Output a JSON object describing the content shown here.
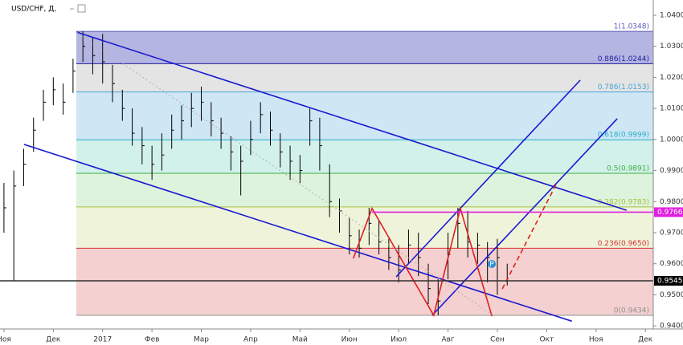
{
  "chart_data": {
    "type": "ohlc",
    "title": "USD/CHF, Д,",
    "xlim": [
      -0.08,
      13.16
    ],
    "ylim": [
      0.939,
      1.0449
    ],
    "xticks": [
      {
        "value": 0,
        "label": "Ноя"
      },
      {
        "value": 1,
        "label": "Дек"
      },
      {
        "value": 2,
        "label": "2017"
      },
      {
        "value": 3,
        "label": "Фев"
      },
      {
        "value": 4,
        "label": "Мар"
      },
      {
        "value": 5,
        "label": "Апр"
      },
      {
        "value": 6,
        "label": "Май"
      },
      {
        "value": 7,
        "label": "Июн"
      },
      {
        "value": 8,
        "label": "Июл"
      },
      {
        "value": 9,
        "label": "Авг"
      },
      {
        "value": 10,
        "label": "Сен"
      },
      {
        "value": 11,
        "label": "Окт"
      },
      {
        "value": 12,
        "label": "Ноя"
      },
      {
        "value": 13,
        "label": "Дек"
      }
    ],
    "yticks": [
      {
        "value": 0.94,
        "label": "0.9400"
      },
      {
        "value": 0.95,
        "label": "0.9500"
      },
      {
        "value": 0.96,
        "label": "0.9600"
      },
      {
        "value": 0.97,
        "label": "0.9700"
      },
      {
        "value": 0.98,
        "label": "0.9800"
      },
      {
        "value": 0.99,
        "label": "0.9900"
      },
      {
        "value": 1.0,
        "label": "1.0000"
      },
      {
        "value": 1.01,
        "label": "1.0100"
      },
      {
        "value": 1.02,
        "label": "1.0200"
      },
      {
        "value": 1.03,
        "label": "1.0300"
      },
      {
        "value": 1.04,
        "label": "1.0400"
      }
    ],
    "grid": false,
    "color": "#000000",
    "x": [
      0,
      0.2,
      0.4,
      0.6,
      0.8,
      1.0,
      1.2,
      1.4,
      1.6,
      1.8,
      2.0,
      2.2,
      2.4,
      2.6,
      2.8,
      3.0,
      3.2,
      3.4,
      3.6,
      3.8,
      4.0,
      4.2,
      4.4,
      4.6,
      4.8,
      5.0,
      5.2,
      5.4,
      5.6,
      5.8,
      6.0,
      6.2,
      6.4,
      6.6,
      6.8,
      7.0,
      7.2,
      7.4,
      7.6,
      7.8,
      8.0,
      8.2,
      8.4,
      8.6,
      8.8,
      9.0,
      9.2,
      9.4,
      9.6,
      9.8,
      10.0,
      10.2
    ],
    "high": [
      0.986,
      0.99,
      0.997,
      1.007,
      1.016,
      1.02,
      1.018,
      1.026,
      1.0348,
      1.033,
      1.034,
      1.024,
      1.016,
      1.01,
      1.004,
      0.998,
      1.002,
      1.008,
      1.011,
      1.015,
      1.017,
      1.012,
      1.007,
      1.001,
      0.998,
      1.006,
      1.012,
      1.009,
      1.002,
      0.998,
      0.995,
      1.01,
      1.007,
      0.992,
      0.981,
      0.975,
      0.971,
      0.978,
      0.974,
      0.968,
      0.966,
      0.971,
      0.97,
      0.96,
      0.955,
      0.97,
      0.978,
      0.977,
      0.97,
      0.967,
      0.968,
      0.96
    ],
    "low": [
      0.97,
      0.9545,
      0.985,
      0.996,
      1.006,
      1.011,
      1.008,
      1.015,
      1.025,
      1.021,
      1.018,
      1.012,
      1.006,
      0.998,
      0.992,
      0.987,
      0.99,
      0.997,
      1.0,
      1.004,
      1.006,
      1.001,
      0.997,
      0.99,
      0.982,
      0.995,
      1.002,
      0.998,
      0.991,
      0.987,
      0.986,
      0.998,
      0.99,
      0.975,
      0.97,
      0.963,
      0.962,
      0.966,
      0.963,
      0.958,
      0.954,
      0.96,
      0.956,
      0.947,
      0.9434,
      0.955,
      0.965,
      0.962,
      0.96,
      0.954,
      0.95,
      0.953
    ],
    "close": [
      0.978,
      0.985,
      0.992,
      1.003,
      1.012,
      1.016,
      1.012,
      1.022,
      1.03,
      1.027,
      1.025,
      1.018,
      1.01,
      1.002,
      0.998,
      0.992,
      0.995,
      1.003,
      1.006,
      1.01,
      1.012,
      1.006,
      1.002,
      0.996,
      0.993,
      1.0,
      1.008,
      1.003,
      0.996,
      0.993,
      0.99,
      1.006,
      0.998,
      0.98,
      0.977,
      0.969,
      0.965,
      0.973,
      0.967,
      0.962,
      0.958,
      0.966,
      0.962,
      0.952,
      0.948,
      0.963,
      0.973,
      0.967,
      0.966,
      0.962,
      0.962,
      0.9545
    ],
    "fib_x_start": 1.466,
    "fib_levels": [
      {
        "value": 1.0348,
        "label": "1(1.0348)",
        "color": "#5a5ab8",
        "band_color": "#b5b5e2"
      },
      {
        "value": 1.0244,
        "label": "0.886(1.0244)",
        "color": "#2020a0",
        "band_color": "#e4e4e4"
      },
      {
        "value": 1.0153,
        "label": "0.786(1.0153)",
        "color": "#4aa3d8",
        "band_color": "#cfe6f5"
      },
      {
        "value": 0.9999,
        "label": "0.618(0.9999)",
        "color": "#22b0c8",
        "band_color": "#d2f1ea"
      },
      {
        "value": 0.9891,
        "label": "0.5(0.9891)",
        "color": "#3cb043",
        "band_color": "#def3dc"
      },
      {
        "value": 0.9783,
        "label": "0.382(0.9783)",
        "color": "#a8c040",
        "band_color": "#eff3da"
      },
      {
        "value": 0.965,
        "label": "0.236(0.9650)",
        "color": "#d83030",
        "band_color": "#f4d0d0"
      },
      {
        "value": 0.9434,
        "label": "0(0.9434)",
        "color": "#909090",
        "band_color": "#f4d0d0"
      }
    ],
    "trend_lines": [
      {
        "x": [
          1.466,
          12.62
        ],
        "y": [
          1.0346,
          0.9772
        ],
        "color": "#1a1ad0",
        "style": "solid"
      },
      {
        "x": [
          0.407,
          11.51
        ],
        "y": [
          0.9984,
          0.9415
        ],
        "color": "#1a1ad0",
        "style": "solid"
      },
      {
        "x": [
          7.95,
          11.68
        ],
        "y": [
          0.9558,
          1.0191
        ],
        "color": "#1a1ad0",
        "style": "solid"
      },
      {
        "x": [
          8.68,
          12.43
        ],
        "y": [
          0.9434,
          1.0067
        ],
        "color": "#1a1ad0",
        "style": "solid"
      },
      {
        "x": [
          7.08,
          7.46,
          8.71,
          9.25,
          9.89
        ],
        "y": [
          0.9617,
          0.9778,
          0.9434,
          0.9778,
          0.9431
        ],
        "color": "#e02020",
        "style": "solid"
      },
      {
        "x": [
          10.1,
          11.19
        ],
        "y": [
          0.9519,
          0.9855
        ],
        "color": "#e02020",
        "style": "dashed"
      },
      {
        "x": [
          1.466,
          9.89
        ],
        "y": [
          1.0346,
          0.9436
        ],
        "color": "#b0b0b0",
        "style": "dotted"
      },
      {
        "x": [
          7.46,
          13.16
        ],
        "y": [
          0.9766,
          0.9766
        ],
        "color": "#e020e0",
        "style": "solid"
      },
      {
        "x": [
          -0.08,
          13.16
        ],
        "y": [
          0.9545,
          0.9545
        ],
        "color": "#303030",
        "style": "solid"
      }
    ],
    "price_tags": [
      {
        "value": 0.9766,
        "label": "0.9766",
        "color": "#e020e0"
      },
      {
        "value": 0.9545,
        "label": "0.9545",
        "color": "#000000"
      }
    ]
  }
}
